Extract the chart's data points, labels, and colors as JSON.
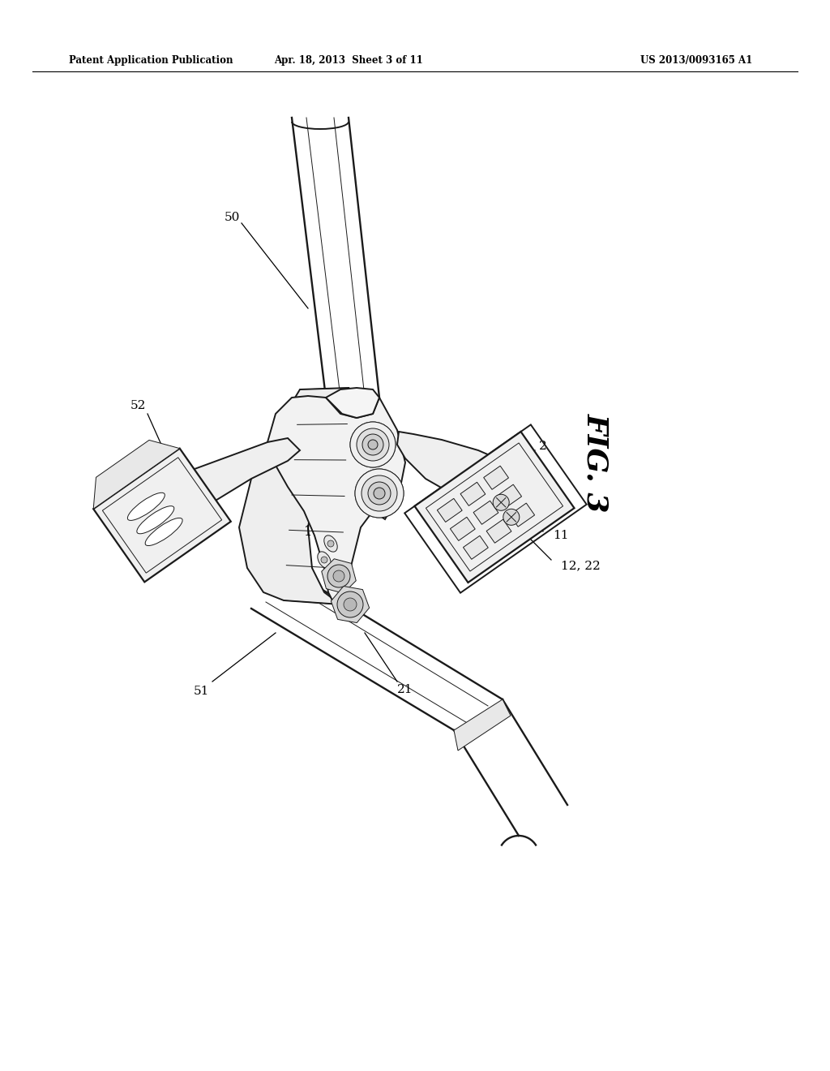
{
  "background_color": "#ffffff",
  "fig_width": 10.24,
  "fig_height": 13.2,
  "dpi": 100,
  "header_left": "Patent Application Publication",
  "header_center": "Apr. 18, 2013  Sheet 3 of 11",
  "header_right": "US 2013/0093165 A1",
  "figure_label": "FIG. 3",
  "line_color": "#1a1a1a",
  "text_color": "#000000",
  "lw_main": 1.4,
  "lw_thin": 0.7,
  "lw_medium": 1.0
}
